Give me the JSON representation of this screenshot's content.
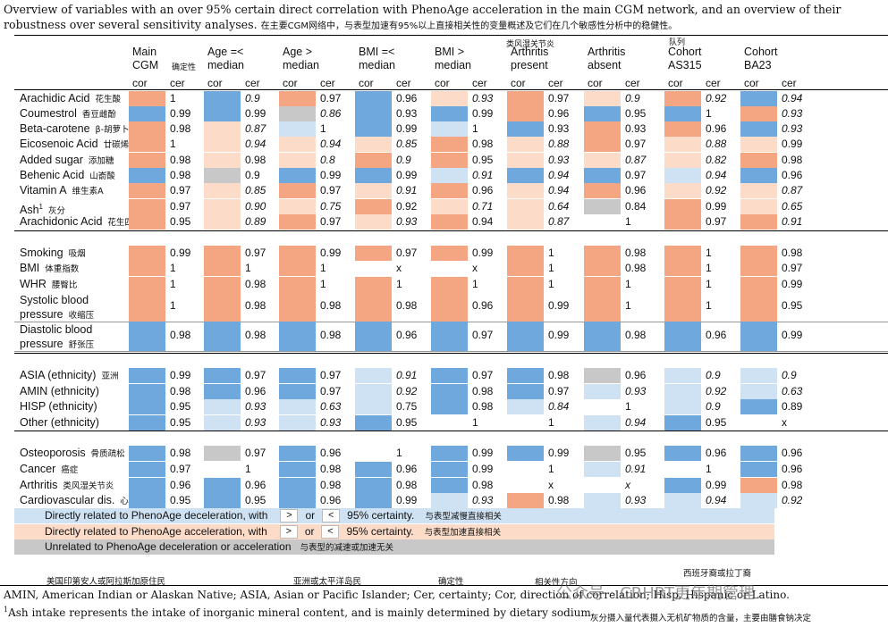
{
  "title": "Overview of variables with an over 95% certain direct correlation with PhenoAge acceleration in the main CGM network, and an overview of their robustness over several sensitivity analyses.",
  "title_cn": "在主要CGM网络中，与表型加速有95%以上直接相关性的变量概述及它们在几个敏感性分析中的稳健性。",
  "overlay_labels": {
    "arthritis_cn": "类风湿关节炎",
    "cohort_cn": "队列",
    "certainty_cn": "确定性"
  },
  "headers": [
    {
      "l1": "Main",
      "l2": "CGM"
    },
    {
      "l1": "Age =<",
      "l2": "median"
    },
    {
      "l1": "Age >",
      "l2": "median"
    },
    {
      "l1": "BMI =<",
      "l2": "median"
    },
    {
      "l1": "BMI >",
      "l2": "median"
    },
    {
      "l1": "Arthritis",
      "l2": "present"
    },
    {
      "l1": "Arthritis",
      "l2": "absent"
    },
    {
      "l1": "Cohort",
      "l2": "AS315"
    },
    {
      "l1": "Cohort",
      "l2": "BA23"
    }
  ],
  "sub": {
    "cor": "cor",
    "cer": "cer"
  },
  "colors": {
    "blue": "#6fa8dc",
    "lightblue": "#cfe2f3",
    "orange": "#f4a582",
    "lightorange": "#fcdcc8",
    "gray": "#c8c8c8",
    "white": "#ffffff"
  },
  "rows": [
    {
      "name": "Arachidic Acid",
      "cn": "花生酸",
      "c": [
        "o",
        "b",
        "o",
        "b",
        "lo",
        "o",
        "lo",
        "o",
        "b"
      ],
      "v": [
        "1",
        "0.9",
        "0.97",
        "0.96",
        "0.93",
        "0.97",
        "0.9",
        "0.92",
        "0.94"
      ],
      "it": [
        0,
        1,
        0,
        0,
        1,
        0,
        1,
        1,
        1
      ]
    },
    {
      "name": "Coumestrol",
      "cn": "香豆雌酚",
      "c": [
        "b",
        "b",
        "g",
        "b",
        "b",
        "o",
        "b",
        "b",
        "o"
      ],
      "v": [
        "0.99",
        "0.99",
        "0.86",
        "0.93",
        "0.99",
        "0.96",
        "0.95",
        "1",
        "0.93"
      ],
      "it": [
        0,
        0,
        1,
        0,
        0,
        0,
        0,
        0,
        1
      ]
    },
    {
      "name": "Beta-carotene",
      "cn": "β-胡萝卜素",
      "c": [
        "o",
        "lo",
        "lb",
        "b",
        "lb",
        "b",
        "o",
        "o",
        "b"
      ],
      "v": [
        "0.98",
        "0.87",
        "1",
        "0.99",
        "1",
        "0.93",
        "0.93",
        "0.96",
        "0.93"
      ],
      "it": [
        0,
        1,
        0,
        0,
        0,
        0,
        0,
        0,
        1
      ]
    },
    {
      "name": "Eicosenoic Acid",
      "cn": "廿碳烯酸",
      "c": [
        "o",
        "lo",
        "lo",
        "lo",
        "o",
        "lo",
        "o",
        "lo",
        "lo"
      ],
      "v": [
        "1",
        "0.94",
        "0.94",
        "0.85",
        "0.98",
        "0.88",
        "0.97",
        "0.88",
        "0.99"
      ],
      "it": [
        0,
        1,
        1,
        1,
        0,
        1,
        0,
        1,
        0
      ]
    },
    {
      "name": "Added sugar",
      "cn": "添加糖",
      "c": [
        "o",
        "lo",
        "lo",
        "o",
        "o",
        "lo",
        "lo",
        "lo",
        "o"
      ],
      "v": [
        "0.98",
        "0.98",
        "0.8",
        "0.9",
        "0.95",
        "0.93",
        "0.87",
        "0.82",
        "0.98"
      ],
      "it": [
        0,
        0,
        1,
        1,
        0,
        1,
        1,
        1,
        0
      ]
    },
    {
      "name": "Behenic Acid",
      "cn": "山嵛酸",
      "c": [
        "b",
        "g",
        "b",
        "b",
        "lb",
        "b",
        "b",
        "lb",
        "b"
      ],
      "v": [
        "0.98",
        "0.9",
        "0.99",
        "0.99",
        "0.91",
        "0.94",
        "0.97",
        "0.94",
        "0.96"
      ],
      "it": [
        0,
        0,
        0,
        0,
        1,
        1,
        0,
        1,
        0
      ]
    },
    {
      "name": "Vitamin A",
      "cn": "维生素A",
      "c": [
        "o",
        "lo",
        "o",
        "lo",
        "o",
        "lo",
        "o",
        "lo",
        "lo"
      ],
      "v": [
        "0.97",
        "0.85",
        "0.97",
        "0.91",
        "0.96",
        "0.94",
        "0.96",
        "0.92",
        "0.87"
      ],
      "it": [
        0,
        1,
        0,
        1,
        0,
        1,
        0,
        1,
        1
      ]
    },
    {
      "name": "Ash",
      "sup": "1",
      "cn": "灰分",
      "c": [
        "o",
        "lo",
        "lo",
        "o",
        "lo",
        "lo",
        "g",
        "o",
        "lo"
      ],
      "v": [
        "0.97",
        "0.90",
        "0.75",
        "0.92",
        "0.71",
        "0.64",
        "0.84",
        "0.99",
        "0.65"
      ],
      "it": [
        0,
        1,
        1,
        0,
        1,
        1,
        0,
        0,
        1
      ]
    },
    {
      "name": "Arachidonic Acid",
      "cn": "花生四烯酸",
      "c": [
        "o",
        "lo",
        "o",
        "lo",
        "o",
        "lo",
        "w",
        "o",
        "o"
      ],
      "v": [
        "0.95",
        "0.89",
        "0.97",
        "0.93",
        "0.94",
        "0.87",
        "1",
        "0.97",
        "0.91"
      ],
      "it": [
        0,
        1,
        0,
        1,
        0,
        1,
        0,
        0,
        1
      ]
    },
    {
      "name": "Smoking",
      "cn": "吸烟",
      "c": [
        "o",
        "o",
        "o",
        "o",
        "o",
        "o",
        "o",
        "o",
        "o"
      ],
      "v": [
        "0.99",
        "0.97",
        "0.99",
        "0.97",
        "0.99",
        "1",
        "0.98",
        "1",
        "0.98"
      ],
      "it": [
        0,
        0,
        0,
        0,
        0,
        0,
        0,
        0,
        0
      ]
    },
    {
      "name": "BMI",
      "cn": "体重指数",
      "c": [
        "o",
        "o",
        "o",
        "w",
        "w",
        "o",
        "o",
        "o",
        "o"
      ],
      "v": [
        "1",
        "1",
        "1",
        "x",
        "x",
        "1",
        "0.98",
        "1",
        "0.97"
      ],
      "it": [
        0,
        0,
        0,
        0,
        0,
        0,
        0,
        0,
        0
      ]
    },
    {
      "name": "WHR",
      "cn": "腰臀比",
      "c": [
        "o",
        "o",
        "o",
        "o",
        "o",
        "o",
        "o",
        "o",
        "o"
      ],
      "v": [
        "1",
        "0.98",
        "1",
        "1",
        "1",
        "1",
        "1",
        "1",
        "0.99"
      ],
      "it": [
        0,
        0,
        0,
        0,
        0,
        0,
        0,
        0,
        0
      ]
    },
    {
      "name": "Systolic blood pressure",
      "cn": "收缩压",
      "c": [
        "o",
        "o",
        "o",
        "o",
        "o",
        "o",
        "o",
        "o",
        "o"
      ],
      "v": [
        "1",
        "0.98",
        "0.98",
        "0.98",
        "0.96",
        "0.99",
        "1",
        "1",
        "0.95"
      ],
      "it": [
        0,
        0,
        0,
        0,
        0,
        0,
        0,
        0,
        0
      ],
      "tall": true
    },
    {
      "name": "Diastolic blood pressure",
      "cn": "舒张压",
      "c": [
        "b",
        "b",
        "b",
        "b",
        "b",
        "b",
        "b",
        "b",
        "b"
      ],
      "v": [
        "0.98",
        "0.98",
        "0.98",
        "0.96",
        "0.97",
        "0.99",
        "0.98",
        "0.96",
        "0.99"
      ],
      "it": [
        0,
        0,
        0,
        0,
        0,
        0,
        0,
        0,
        0
      ],
      "tall": true
    },
    {
      "name": "ASIA (ethnicity)",
      "cn": "亚洲",
      "c": [
        "b",
        "b",
        "b",
        "lb",
        "b",
        "b",
        "g",
        "lb",
        "lb"
      ],
      "v": [
        "0.99",
        "0.97",
        "0.97",
        "0.91",
        "0.97",
        "0.98",
        "0.96",
        "0.9",
        "0.9"
      ],
      "it": [
        0,
        0,
        0,
        1,
        0,
        0,
        0,
        1,
        1
      ]
    },
    {
      "name": "AMIN (ethnicity)",
      "cn": "",
      "c": [
        "b",
        "b",
        "b",
        "lb",
        "b",
        "b",
        "lb",
        "lb",
        "lb"
      ],
      "v": [
        "0.98",
        "0.96",
        "0.97",
        "0.92",
        "0.98",
        "0.97",
        "0.93",
        "0.92",
        "0.63"
      ],
      "it": [
        0,
        0,
        0,
        1,
        0,
        0,
        1,
        1,
        1
      ]
    },
    {
      "name": "HISP (ethnicity)",
      "cn": "",
      "c": [
        "b",
        "lb",
        "lb",
        "lb",
        "b",
        "lb",
        "w",
        "lb",
        "b"
      ],
      "v": [
        "0.95",
        "0.93",
        "0.63",
        "0.75",
        "0.98",
        "0.84",
        "1",
        "0.9",
        "0.89"
      ],
      "it": [
        0,
        1,
        1,
        0,
        0,
        1,
        0,
        1,
        0
      ]
    },
    {
      "name": "Other (ethnicity)",
      "cn": "",
      "c": [
        "b",
        "lb",
        "lb",
        "b",
        "w",
        "w",
        "lb",
        "b",
        "w"
      ],
      "v": [
        "0.95",
        "0.93",
        "0.93",
        "0.95",
        "1",
        "1",
        "0.94",
        "0.95",
        "x"
      ],
      "it": [
        0,
        1,
        1,
        0,
        0,
        0,
        1,
        0,
        0
      ]
    },
    {
      "name": "Osteoporosis",
      "cn": "骨质疏松",
      "c": [
        "b",
        "g",
        "b",
        "w",
        "b",
        "b",
        "g",
        "b",
        "b"
      ],
      "v": [
        "0.98",
        "0.97",
        "0.96",
        "1",
        "0.99",
        "0.99",
        "0.95",
        "0.96",
        "0.96"
      ],
      "it": [
        0,
        0,
        0,
        0,
        0,
        0,
        0,
        0,
        0
      ]
    },
    {
      "name": "Cancer",
      "cn": "癌症",
      "c": [
        "b",
        "w",
        "b",
        "b",
        "b",
        "w",
        "lb",
        "w",
        "b"
      ],
      "v": [
        "0.97",
        "1",
        "0.98",
        "0.96",
        "0.99",
        "1",
        "0.91",
        "1",
        "0.96"
      ],
      "it": [
        0,
        0,
        0,
        0,
        0,
        0,
        1,
        0,
        0
      ]
    },
    {
      "name": "Arthritis",
      "cn": "类风湿关节炎",
      "c": [
        "b",
        "b",
        "b",
        "b",
        "b",
        "w",
        "w",
        "b",
        "o"
      ],
      "v": [
        "0.96",
        "0.96",
        "0.98",
        "0.98",
        "0.98",
        "x",
        "x",
        "0.99",
        "0.98"
      ],
      "it": [
        0,
        0,
        0,
        0,
        0,
        0,
        1,
        0,
        0
      ]
    },
    {
      "name": "Cardiovascular dis.",
      "cn": "心血管疾病",
      "c": [
        "b",
        "b",
        "b",
        "b",
        "lb",
        "o",
        "lb",
        "lb",
        "lb"
      ],
      "v": [
        "0.95",
        "0.95",
        "0.96",
        "0.99",
        "0.93",
        "0.98",
        "0.93",
        "0.94",
        "0.92"
      ],
      "it": [
        0,
        0,
        0,
        0,
        1,
        0,
        1,
        1,
        1
      ]
    }
  ],
  "legend": [
    {
      "color": "lightblue",
      "text": "Directly related to PhenoAge deceleration, with",
      "box1": ">",
      "or": "or",
      "box2": "<",
      "tail": "95% certainty.",
      "cn": "与表型减慢直接相关"
    },
    {
      "color": "lightorange",
      "text": "Directly related to PhenoAge acceleration, with",
      "box1": ">",
      "or": "or",
      "box2": "<",
      "tail": "95% certainty.",
      "cn": "与表型加速直接相关"
    },
    {
      "color": "gray",
      "text": "Unrelated to PhenoAge deceleration or acceleration",
      "cn": "与表型的减速或加速无关"
    }
  ],
  "bottom_cn": [
    {
      "t": "美国印第安人或阿拉斯加原住民"
    },
    {
      "t": "亚洲或太平洋岛民"
    },
    {
      "t": "确定性"
    },
    {
      "t": "相关性方向"
    },
    {
      "t": "西班牙裔或拉丁裔"
    }
  ],
  "footnotes": {
    "abbrev": "AMIN, American Indian or Alaskan Native; ASIA, Asian or Pacific Islander; Cer, certainty; Cor, direction of correlation; Hisp, Hispanic or Latino.",
    "ash_sup": "1",
    "ash": "Ash intake represents the intake of inorganic mineral content, and is mainly determined by dietary sodium.",
    "ash_cn": "灰分摄入量代表摄入无机矿物质的含量，主要由膳食钠决定"
  },
  "watermark": "公众号 · CRHRT更年期管理"
}
